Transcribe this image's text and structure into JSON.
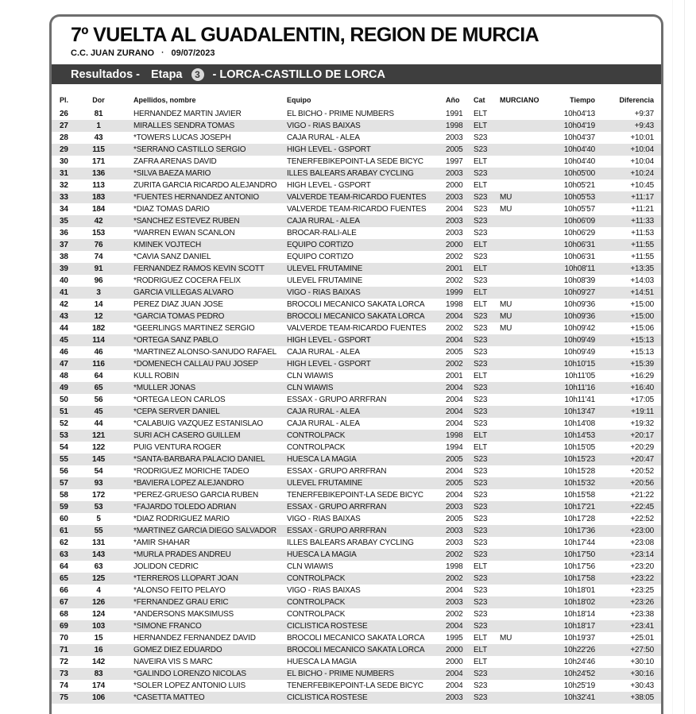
{
  "page": {
    "title": "7º VUELTA AL GUADALENTIN, REGION DE MURCIA",
    "organizer": "C.C. JUAN ZURANO",
    "separator": "·",
    "date": "09/07/2023"
  },
  "results_bar": {
    "prefix": "Resultados -",
    "stage_label": "Etapa",
    "stage_number": "3",
    "route": "- LORCA-CASTILLO DE LORCA"
  },
  "colors": {
    "bar_bg": "#3e3e3e",
    "stripe": "#e3e3e3",
    "frame_border": "#6e6e6e"
  },
  "table": {
    "columns": [
      "Pl.",
      "Dor",
      "Apellidos, nombre",
      "Equipo",
      "Año",
      "Cat",
      "MURCIANO",
      "Tiempo",
      "Diferencia"
    ],
    "rows": [
      {
        "pl": "26",
        "dor": "81",
        "name": "HERNANDEZ MARTIN JAVIER",
        "team": "EL BICHO - PRIME NUMBERS",
        "year": "1991",
        "cat": "ELT",
        "murciano": "",
        "tiempo": "10h04'13",
        "diferencia": "+9:37"
      },
      {
        "pl": "27",
        "dor": "1",
        "name": "MIRALLES SENDRA TOMAS",
        "team": "VIGO - RIAS BAIXAS",
        "year": "1998",
        "cat": "ELT",
        "murciano": "",
        "tiempo": "10h04'19",
        "diferencia": "+9:43"
      },
      {
        "pl": "28",
        "dor": "43",
        "name": "*TOWERS LUCAS JOSEPH",
        "team": "CAJA RURAL - ALEA",
        "year": "2003",
        "cat": "S23",
        "murciano": "",
        "tiempo": "10h04'37",
        "diferencia": "+10:01"
      },
      {
        "pl": "29",
        "dor": "115",
        "name": "*SERRANO CASTILLO SERGIO",
        "team": "HIGH LEVEL - GSPORT",
        "year": "2005",
        "cat": "S23",
        "murciano": "",
        "tiempo": "10h04'40",
        "diferencia": "+10:04"
      },
      {
        "pl": "30",
        "dor": "171",
        "name": "ZAFRA ARENAS DAVID",
        "team": "TENERFEBIKEPOINT-LA SEDE BICYC",
        "year": "1997",
        "cat": "ELT",
        "murciano": "",
        "tiempo": "10h04'40",
        "diferencia": "+10:04"
      },
      {
        "pl": "31",
        "dor": "136",
        "name": "*SILVA BAEZA MARIO",
        "team": "ILLES BALEARS ARABAY CYCLING",
        "year": "2003",
        "cat": "S23",
        "murciano": "",
        "tiempo": "10h05'00",
        "diferencia": "+10:24"
      },
      {
        "pl": "32",
        "dor": "113",
        "name": "ZURITA GARCIA RICARDO ALEJANDRO",
        "team": "HIGH LEVEL - GSPORT",
        "year": "2000",
        "cat": "ELT",
        "murciano": "",
        "tiempo": "10h05'21",
        "diferencia": "+10:45"
      },
      {
        "pl": "33",
        "dor": "183",
        "name": "*FUENTES HERNANDEZ ANTONIO",
        "team": "VALVERDE TEAM-RICARDO FUENTES",
        "year": "2003",
        "cat": "S23",
        "murciano": "MU",
        "tiempo": "10h05'53",
        "diferencia": "+11:17"
      },
      {
        "pl": "34",
        "dor": "184",
        "name": "*DIAZ TOMAS DARIO",
        "team": "VALVERDE TEAM-RICARDO FUENTES",
        "year": "2004",
        "cat": "S23",
        "murciano": "MU",
        "tiempo": "10h05'57",
        "diferencia": "+11:21"
      },
      {
        "pl": "35",
        "dor": "42",
        "name": "*SANCHEZ ESTEVEZ RUBEN",
        "team": "CAJA RURAL - ALEA",
        "year": "2003",
        "cat": "S23",
        "murciano": "",
        "tiempo": "10h06'09",
        "diferencia": "+11:33"
      },
      {
        "pl": "36",
        "dor": "153",
        "name": "*WARREN EWAN SCANLON",
        "team": "BROCAR-RALI-ALE",
        "year": "2003",
        "cat": "S23",
        "murciano": "",
        "tiempo": "10h06'29",
        "diferencia": "+11:53"
      },
      {
        "pl": "37",
        "dor": "76",
        "name": "KMINEK VOJTECH",
        "team": "EQUIPO CORTIZO",
        "year": "2000",
        "cat": "ELT",
        "murciano": "",
        "tiempo": "10h06'31",
        "diferencia": "+11:55"
      },
      {
        "pl": "38",
        "dor": "74",
        "name": "*CAVIA SANZ DANIEL",
        "team": "EQUIPO CORTIZO",
        "year": "2002",
        "cat": "S23",
        "murciano": "",
        "tiempo": "10h06'31",
        "diferencia": "+11:55"
      },
      {
        "pl": "39",
        "dor": "91",
        "name": "FERNANDEZ RAMOS KEVIN SCOTT",
        "team": "ULEVEL FRUTAMINE",
        "year": "2001",
        "cat": "ELT",
        "murciano": "",
        "tiempo": "10h08'11",
        "diferencia": "+13:35"
      },
      {
        "pl": "40",
        "dor": "96",
        "name": "*RODRIGUEZ COCERA FELIX",
        "team": "ULEVEL FRUTAMINE",
        "year": "2002",
        "cat": "S23",
        "murciano": "",
        "tiempo": "10h08'39",
        "diferencia": "+14:03"
      },
      {
        "pl": "41",
        "dor": "3",
        "name": "GARCIA VILLEGAS ALVARO",
        "team": "VIGO - RIAS BAIXAS",
        "year": "1999",
        "cat": "ELT",
        "murciano": "",
        "tiempo": "10h09'27",
        "diferencia": "+14:51"
      },
      {
        "pl": "42",
        "dor": "14",
        "name": "PEREZ DIAZ JUAN JOSE",
        "team": "BROCOLI MECANICO SAKATA LORCA",
        "year": "1998",
        "cat": "ELT",
        "murciano": "MU",
        "tiempo": "10h09'36",
        "diferencia": "+15:00"
      },
      {
        "pl": "43",
        "dor": "12",
        "name": "*GARCIA TOMAS PEDRO",
        "team": "BROCOLI MECANICO SAKATA LORCA",
        "year": "2004",
        "cat": "S23",
        "murciano": "MU",
        "tiempo": "10h09'36",
        "diferencia": "+15:00"
      },
      {
        "pl": "44",
        "dor": "182",
        "name": "*GEERLINGS MARTINEZ SERGIO",
        "team": "VALVERDE TEAM-RICARDO FUENTES",
        "year": "2002",
        "cat": "S23",
        "murciano": "MU",
        "tiempo": "10h09'42",
        "diferencia": "+15:06"
      },
      {
        "pl": "45",
        "dor": "114",
        "name": "*ORTEGA SANZ PABLO",
        "team": "HIGH LEVEL - GSPORT",
        "year": "2004",
        "cat": "S23",
        "murciano": "",
        "tiempo": "10h09'49",
        "diferencia": "+15:13"
      },
      {
        "pl": "46",
        "dor": "46",
        "name": "*MARTINEZ ALONSO-SAÑUDO RAFAEL",
        "team": "CAJA RURAL - ALEA",
        "year": "2005",
        "cat": "S23",
        "murciano": "",
        "tiempo": "10h09'49",
        "diferencia": "+15:13"
      },
      {
        "pl": "47",
        "dor": "116",
        "name": "*DOMENECH CALLAU PAU JOSEP",
        "team": "HIGH LEVEL - GSPORT",
        "year": "2002",
        "cat": "S23",
        "murciano": "",
        "tiempo": "10h10'15",
        "diferencia": "+15:39"
      },
      {
        "pl": "48",
        "dor": "64",
        "name": "KULL ROBIN",
        "team": "CLN WIAWIS",
        "year": "2001",
        "cat": "ELT",
        "murciano": "",
        "tiempo": "10h11'05",
        "diferencia": "+16:29"
      },
      {
        "pl": "49",
        "dor": "65",
        "name": "*MULLER JONAS",
        "team": "CLN WIAWIS",
        "year": "2004",
        "cat": "S23",
        "murciano": "",
        "tiempo": "10h11'16",
        "diferencia": "+16:40"
      },
      {
        "pl": "50",
        "dor": "56",
        "name": "*ORTEGA LEON CARLOS",
        "team": "ESSAX - GRUPO ARRFRAN",
        "year": "2004",
        "cat": "S23",
        "murciano": "",
        "tiempo": "10h11'41",
        "diferencia": "+17:05"
      },
      {
        "pl": "51",
        "dor": "45",
        "name": "*CEPA SERVER DANIEL",
        "team": "CAJA RURAL - ALEA",
        "year": "2004",
        "cat": "S23",
        "murciano": "",
        "tiempo": "10h13'47",
        "diferencia": "+19:11"
      },
      {
        "pl": "52",
        "dor": "44",
        "name": "*CALABUIG VAZQUEZ ESTANISLAO",
        "team": "CAJA RURAL - ALEA",
        "year": "2004",
        "cat": "S23",
        "murciano": "",
        "tiempo": "10h14'08",
        "diferencia": "+19:32"
      },
      {
        "pl": "53",
        "dor": "121",
        "name": "SURI ACH CASERO GUILLEM",
        "team": "CONTROLPACK",
        "year": "1998",
        "cat": "ELT",
        "murciano": "",
        "tiempo": "10h14'53",
        "diferencia": "+20:17"
      },
      {
        "pl": "54",
        "dor": "122",
        "name": "PUIG VENTURA ROGER",
        "team": "CONTROLPACK",
        "year": "1994",
        "cat": "ELT",
        "murciano": "",
        "tiempo": "10h15'05",
        "diferencia": "+20:29"
      },
      {
        "pl": "55",
        "dor": "145",
        "name": "*SANTA-BARBARA PALACIO DANIEL",
        "team": "HUESCA LA MAGIA",
        "year": "2005",
        "cat": "S23",
        "murciano": "",
        "tiempo": "10h15'23",
        "diferencia": "+20:47"
      },
      {
        "pl": "56",
        "dor": "54",
        "name": "*RODRIGUEZ MORICHE TADEO",
        "team": "ESSAX - GRUPO ARRFRAN",
        "year": "2004",
        "cat": "S23",
        "murciano": "",
        "tiempo": "10h15'28",
        "diferencia": "+20:52"
      },
      {
        "pl": "57",
        "dor": "93",
        "name": "*BAVIERA LOPEZ ALEJANDRO",
        "team": "ULEVEL FRUTAMINE",
        "year": "2005",
        "cat": "S23",
        "murciano": "",
        "tiempo": "10h15'32",
        "diferencia": "+20:56"
      },
      {
        "pl": "58",
        "dor": "172",
        "name": "*PEREZ-GRUESO GARCIA RUBEN",
        "team": "TENERFEBIKEPOINT-LA SEDE BICYC",
        "year": "2004",
        "cat": "S23",
        "murciano": "",
        "tiempo": "10h15'58",
        "diferencia": "+21:22"
      },
      {
        "pl": "59",
        "dor": "53",
        "name": "*FAJARDO TOLEDO ADRIAN",
        "team": "ESSAX - GRUPO ARRFRAN",
        "year": "2003",
        "cat": "S23",
        "murciano": "",
        "tiempo": "10h17'21",
        "diferencia": "+22:45"
      },
      {
        "pl": "60",
        "dor": "5",
        "name": "*DIAZ RODRIGUEZ MARIO",
        "team": "VIGO - RIAS BAIXAS",
        "year": "2005",
        "cat": "S23",
        "murciano": "",
        "tiempo": "10h17'28",
        "diferencia": "+22:52"
      },
      {
        "pl": "61",
        "dor": "55",
        "name": "*MARTINEZ GARCIA DIEGO SALVADOR",
        "team": "ESSAX - GRUPO ARRFRAN",
        "year": "2003",
        "cat": "S23",
        "murciano": "",
        "tiempo": "10h17'36",
        "diferencia": "+23:00"
      },
      {
        "pl": "62",
        "dor": "131",
        "name": "*AMIR SHAHAR",
        "team": "ILLES BALEARS ARABAY CYCLING",
        "year": "2003",
        "cat": "S23",
        "murciano": "",
        "tiempo": "10h17'44",
        "diferencia": "+23:08"
      },
      {
        "pl": "63",
        "dor": "143",
        "name": "*MURLA PRADES ANDREU",
        "team": "HUESCA LA MAGIA",
        "year": "2002",
        "cat": "S23",
        "murciano": "",
        "tiempo": "10h17'50",
        "diferencia": "+23:14"
      },
      {
        "pl": "64",
        "dor": "63",
        "name": "JOLIDON CEDRIC",
        "team": "CLN WIAWIS",
        "year": "1998",
        "cat": "ELT",
        "murciano": "",
        "tiempo": "10h17'56",
        "diferencia": "+23:20"
      },
      {
        "pl": "65",
        "dor": "125",
        "name": "*TERREROS LLOPART JOAN",
        "team": "CONTROLPACK",
        "year": "2002",
        "cat": "S23",
        "murciano": "",
        "tiempo": "10h17'58",
        "diferencia": "+23:22"
      },
      {
        "pl": "66",
        "dor": "4",
        "name": "*ALONSO FEITO PELAYO",
        "team": "VIGO - RIAS BAIXAS",
        "year": "2004",
        "cat": "S23",
        "murciano": "",
        "tiempo": "10h18'01",
        "diferencia": "+23:25"
      },
      {
        "pl": "67",
        "dor": "126",
        "name": "*FERNANDEZ GRAU ERIC",
        "team": "CONTROLPACK",
        "year": "2003",
        "cat": "S23",
        "murciano": "",
        "tiempo": "10h18'02",
        "diferencia": "+23:26"
      },
      {
        "pl": "68",
        "dor": "124",
        "name": "*ANDERSONS MAKSIMUSS",
        "team": "CONTROLPACK",
        "year": "2002",
        "cat": "S23",
        "murciano": "",
        "tiempo": "10h18'14",
        "diferencia": "+23:38"
      },
      {
        "pl": "69",
        "dor": "103",
        "name": "*SIMONE FRANCO",
        "team": "CICLISTICA ROSTESE",
        "year": "2004",
        "cat": "S23",
        "murciano": "",
        "tiempo": "10h18'17",
        "diferencia": "+23:41"
      },
      {
        "pl": "70",
        "dor": "15",
        "name": "HERNANDEZ FERNANDEZ DAVID",
        "team": "BROCOLI MECANICO SAKATA LORCA",
        "year": "1995",
        "cat": "ELT",
        "murciano": "MU",
        "tiempo": "10h19'37",
        "diferencia": "+25:01"
      },
      {
        "pl": "71",
        "dor": "16",
        "name": "GOMEZ DIEZ EDUARDO",
        "team": "BROCOLI MECANICO SAKATA LORCA",
        "year": "2000",
        "cat": "ELT",
        "murciano": "",
        "tiempo": "10h22'26",
        "diferencia": "+27:50"
      },
      {
        "pl": "72",
        "dor": "142",
        "name": "NAVEIRA VIS S MARC",
        "team": "HUESCA LA MAGIA",
        "year": "2000",
        "cat": "ELT",
        "murciano": "",
        "tiempo": "10h24'46",
        "diferencia": "+30:10"
      },
      {
        "pl": "73",
        "dor": "83",
        "name": "*GALINDO LORENZO NICOLAS",
        "team": "EL BICHO - PRIME NUMBERS",
        "year": "2004",
        "cat": "S23",
        "murciano": "",
        "tiempo": "10h24'52",
        "diferencia": "+30:16"
      },
      {
        "pl": "74",
        "dor": "174",
        "name": "*SOLER LOPEZ ANTONIO LUIS",
        "team": "TENERFEBIKEPOINT-LA SEDE BICYC",
        "year": "2004",
        "cat": "S23",
        "murciano": "",
        "tiempo": "10h25'19",
        "diferencia": "+30:43"
      },
      {
        "pl": "75",
        "dor": "106",
        "name": "*CASETTA MATTEO",
        "team": "CICLISTICA ROSTESE",
        "year": "2003",
        "cat": "S23",
        "murciano": "",
        "tiempo": "10h32'41",
        "diferencia": "+38:05"
      }
    ]
  }
}
